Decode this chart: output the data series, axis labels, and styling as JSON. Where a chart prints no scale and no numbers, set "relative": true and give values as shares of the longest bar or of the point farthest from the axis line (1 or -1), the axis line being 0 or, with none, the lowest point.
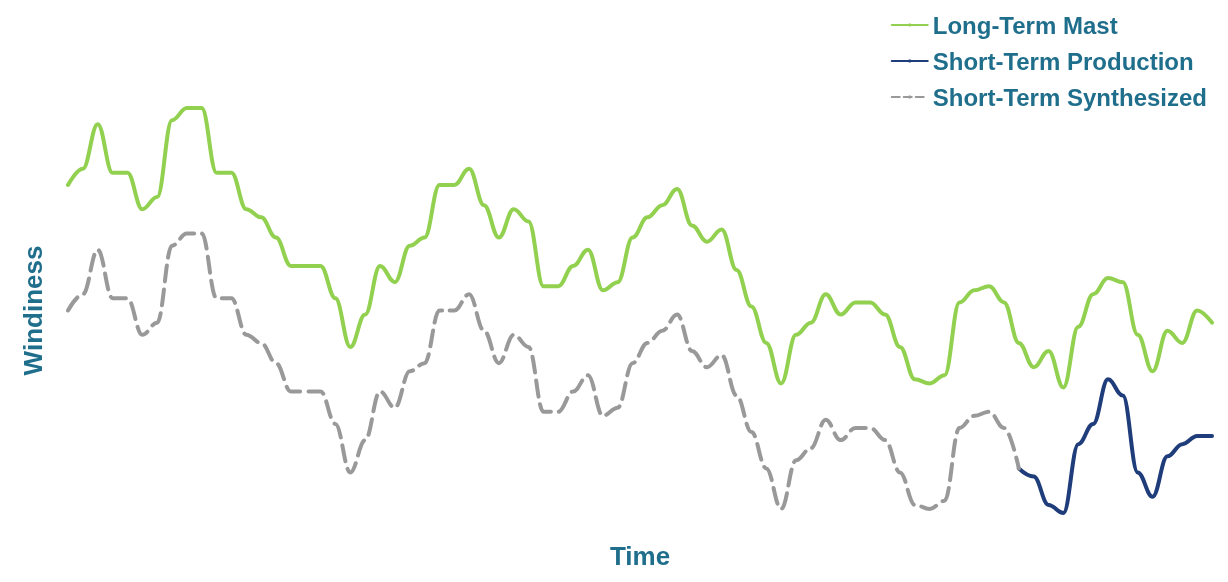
{
  "chart_data": {
    "type": "line",
    "xlabel": "Time",
    "ylabel": "Windiness",
    "relative": true,
    "grid": false,
    "legend": "top right",
    "marker": "none",
    "categories": [
      null,
      null,
      null,
      null,
      null,
      null,
      null,
      null,
      null,
      null,
      null,
      null,
      null,
      null,
      null,
      null,
      null,
      null,
      null,
      null,
      null,
      null,
      null,
      null,
      null,
      null,
      null,
      null,
      null,
      null,
      null,
      null,
      null,
      null,
      null,
      null,
      null,
      null,
      null,
      null,
      null,
      null,
      null,
      null,
      null,
      null,
      null,
      null,
      null,
      null,
      null,
      null,
      null,
      null,
      null,
      null,
      null,
      null,
      null,
      null,
      null,
      null,
      null,
      null,
      null,
      null,
      null,
      null,
      null,
      null,
      null,
      null,
      null,
      null,
      null,
      null,
      null,
      null
    ],
    "series": [
      {
        "name": "Long-Term Mast",
        "color": "#92d050",
        "line_style": "solid",
        "values": [
          0.81,
          0.85,
          0.96,
          0.84,
          0.84,
          0.75,
          0.78,
          0.97,
          1.0,
          1.0,
          0.84,
          0.84,
          0.75,
          0.73,
          0.68,
          0.61,
          0.61,
          0.61,
          0.53,
          0.41,
          0.49,
          0.61,
          0.57,
          0.66,
          0.68,
          0.81,
          0.81,
          0.85,
          0.76,
          0.68,
          0.75,
          0.72,
          0.56,
          0.56,
          0.61,
          0.65,
          0.55,
          0.57,
          0.68,
          0.73,
          0.76,
          0.8,
          0.71,
          0.67,
          0.7,
          0.6,
          0.51,
          0.42,
          0.32,
          0.44,
          0.47,
          0.54,
          0.49,
          0.52,
          0.52,
          0.49,
          0.41,
          0.33,
          0.32,
          0.34,
          0.52,
          0.55,
          0.56,
          0.52,
          0.42,
          0.36,
          0.4,
          0.31,
          0.46,
          0.54,
          0.58,
          0.57,
          0.44,
          0.35,
          0.45,
          0.42,
          0.5,
          0.47
        ]
      },
      {
        "name": "Short-Term Production",
        "color": "#1f3d7a",
        "line_style": "solid",
        "values": [
          null,
          null,
          null,
          null,
          null,
          null,
          null,
          null,
          null,
          null,
          null,
          null,
          null,
          null,
          null,
          null,
          null,
          null,
          null,
          null,
          null,
          null,
          null,
          null,
          null,
          null,
          null,
          null,
          null,
          null,
          null,
          null,
          null,
          null,
          null,
          null,
          null,
          null,
          null,
          null,
          null,
          null,
          null,
          null,
          null,
          null,
          null,
          null,
          null,
          null,
          null,
          null,
          null,
          null,
          null,
          null,
          null,
          null,
          null,
          null,
          null,
          null,
          null,
          null,
          0.11,
          0.09,
          0.02,
          0.0,
          0.17,
          0.22,
          0.33,
          0.29,
          0.1,
          0.04,
          0.14,
          0.17,
          0.19,
          0.19
        ]
      },
      {
        "name": "Short-Term Synthesized",
        "color": "#999999",
        "line_style": "dashed",
        "values": [
          0.5,
          0.54,
          0.65,
          0.53,
          0.53,
          0.44,
          0.47,
          0.66,
          0.69,
          0.69,
          0.53,
          0.53,
          0.44,
          0.42,
          0.37,
          0.3,
          0.3,
          0.3,
          0.22,
          0.1,
          0.18,
          0.3,
          0.26,
          0.35,
          0.37,
          0.5,
          0.5,
          0.54,
          0.45,
          0.37,
          0.44,
          0.41,
          0.25,
          0.25,
          0.3,
          0.34,
          0.24,
          0.26,
          0.37,
          0.42,
          0.45,
          0.49,
          0.4,
          0.36,
          0.39,
          0.29,
          0.2,
          0.11,
          0.01,
          0.13,
          0.16,
          0.23,
          0.18,
          0.21,
          0.21,
          0.18,
          0.1,
          0.02,
          0.01,
          0.03,
          0.21,
          0.24,
          0.25,
          0.21,
          0.11,
          null,
          null,
          null,
          null,
          null,
          null,
          null,
          null,
          null,
          null,
          null,
          null,
          null
        ]
      }
    ]
  }
}
